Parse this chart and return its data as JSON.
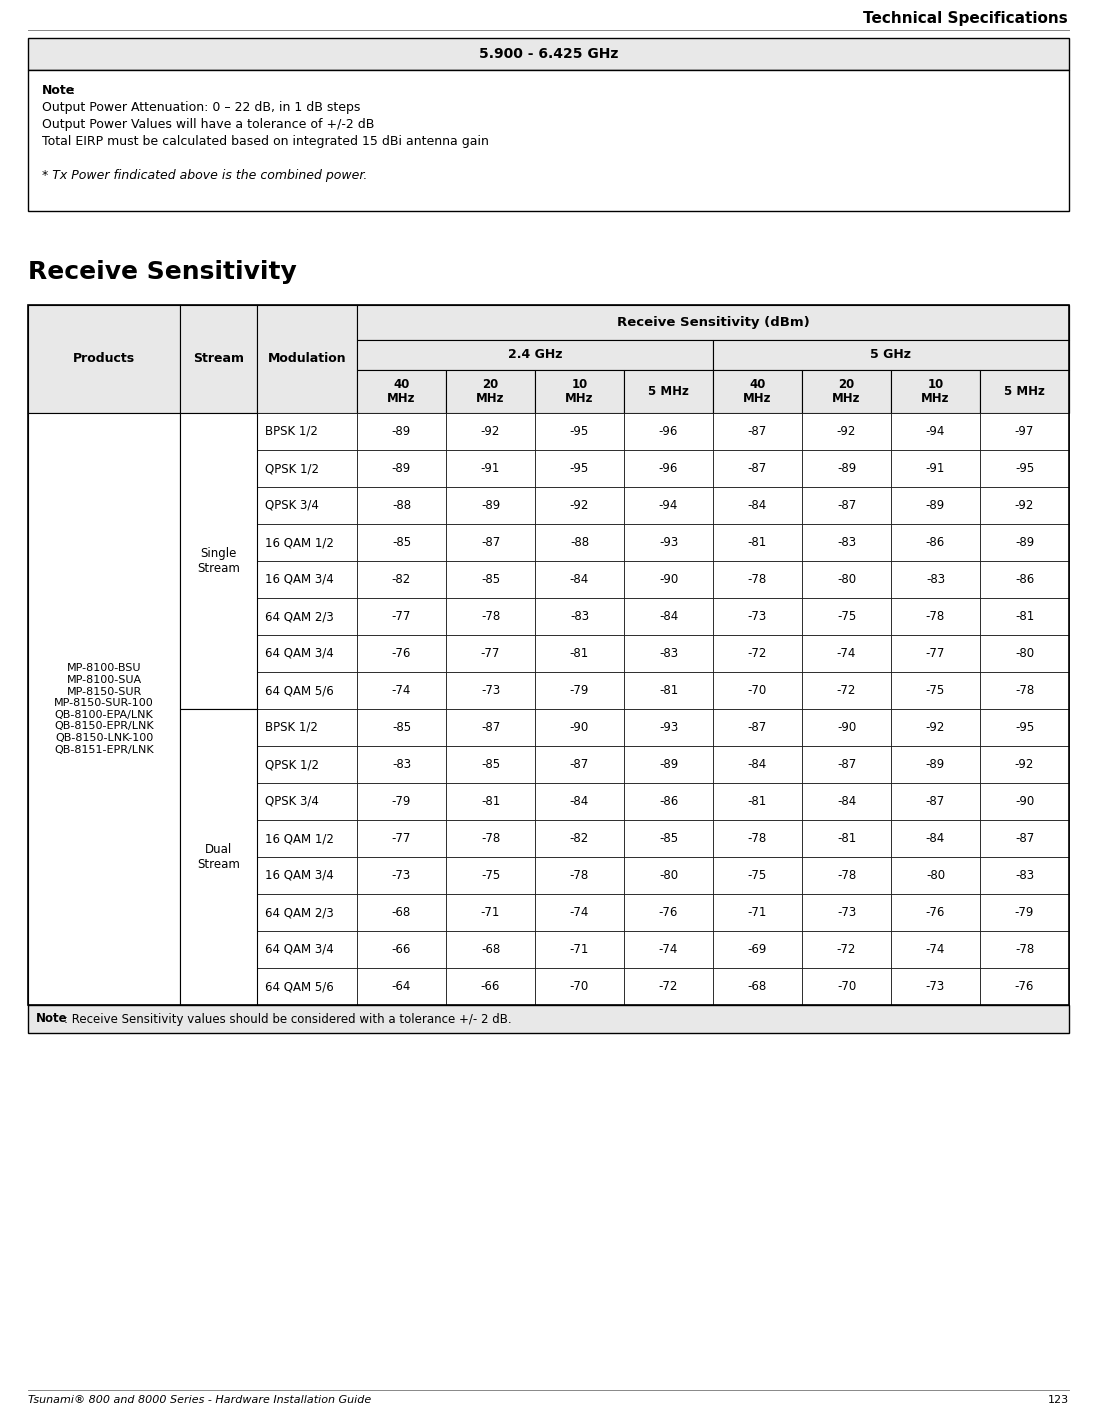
{
  "page_title": "Technical Specifications",
  "footer_text": "Tsunami® 800 and 8000 Series - Hardware Installation Guide",
  "footer_page": "123",
  "top_table_header": "5.900 - 6.425 GHz",
  "note_bold": "Note",
  "note_colon": ":",
  "note_lines": [
    "Output Power Attenuation: 0 – 22 dB, in 1 dB steps",
    "Output Power Values will have a tolerance of +/-2 dB",
    "Total EIRP must be calculated based on integrated 15 dBi antenna gain"
  ],
  "italic_note": "* Tx Power findicated above is the combined power.",
  "section_title": "Receive Sensitivity",
  "rs_header": "Receive Sensitivity (dBm)",
  "ghz24": "2.4 GHz",
  "ghz5": "5 GHz",
  "col_headers": [
    "40\nMHz",
    "20\nMHz",
    "10\nMHz",
    "5 MHz",
    "40\nMHz",
    "20\nMHz",
    "10\nMHz",
    "5 MHz"
  ],
  "hdr_products": "Products",
  "hdr_stream": "Stream",
  "hdr_modulation": "Modulation",
  "products_text": "MP-8100-BSU\nMP-8100-SUA\nMP-8150-SUR\nMP-8150-SUR-100\nQB-8100-EPA/LNK\nQB-8150-EPR/LNK\nQB-8150-LNK-100\nQB-8151-EPR/LNK",
  "stream_single": "Single\nStream",
  "stream_dual": "Dual\nStream",
  "modulations": [
    "BPSK 1/2",
    "QPSK 1/2",
    "QPSK 3/4",
    "16 QAM 1/2",
    "16 QAM 3/4",
    "64 QAM 2/3",
    "64 QAM 3/4",
    "64 QAM 5/6",
    "BPSK 1/2",
    "QPSK 1/2",
    "QPSK 3/4",
    "16 QAM 1/2",
    "16 QAM 3/4",
    "64 QAM 2/3",
    "64 QAM 3/4",
    "64 QAM 5/6"
  ],
  "data_rows": [
    [
      -89,
      -92,
      -95,
      -96,
      -87,
      -92,
      -94,
      -97
    ],
    [
      -89,
      -91,
      -95,
      -96,
      -87,
      -89,
      -91,
      -95
    ],
    [
      -88,
      -89,
      -92,
      -94,
      -84,
      -87,
      -89,
      -92
    ],
    [
      -85,
      -87,
      -88,
      -93,
      -81,
      -83,
      -86,
      -89
    ],
    [
      -82,
      -85,
      -84,
      -90,
      -78,
      -80,
      -83,
      -86
    ],
    [
      -77,
      -78,
      -83,
      -84,
      -73,
      -75,
      -78,
      -81
    ],
    [
      -76,
      -77,
      -81,
      -83,
      -72,
      -74,
      -77,
      -80
    ],
    [
      -74,
      -73,
      -79,
      -81,
      -70,
      -72,
      -75,
      -78
    ],
    [
      -85,
      -87,
      -90,
      -93,
      -87,
      -90,
      -92,
      -95
    ],
    [
      -83,
      -85,
      -87,
      -89,
      -84,
      -87,
      -89,
      -92
    ],
    [
      -79,
      -81,
      -84,
      -86,
      -81,
      -84,
      -87,
      -90
    ],
    [
      -77,
      -78,
      -82,
      -85,
      -78,
      -81,
      -84,
      -87
    ],
    [
      -73,
      -75,
      -78,
      -80,
      -75,
      -78,
      -80,
      -83
    ],
    [
      -68,
      -71,
      -74,
      -76,
      -71,
      -73,
      -76,
      -79
    ],
    [
      -66,
      -68,
      -71,
      -74,
      -69,
      -72,
      -74,
      -78
    ],
    [
      -64,
      -66,
      -70,
      -72,
      -68,
      -70,
      -73,
      -76
    ]
  ],
  "bottom_note_bold": "Note",
  "bottom_note_rest": ": Receive Sensitivity values should be considered with a tolerance +/- 2 dB.",
  "bg_color": "#ffffff",
  "header_bg": "#e8e8e8",
  "border_color": "#000000",
  "note_bg": "#ffffff"
}
